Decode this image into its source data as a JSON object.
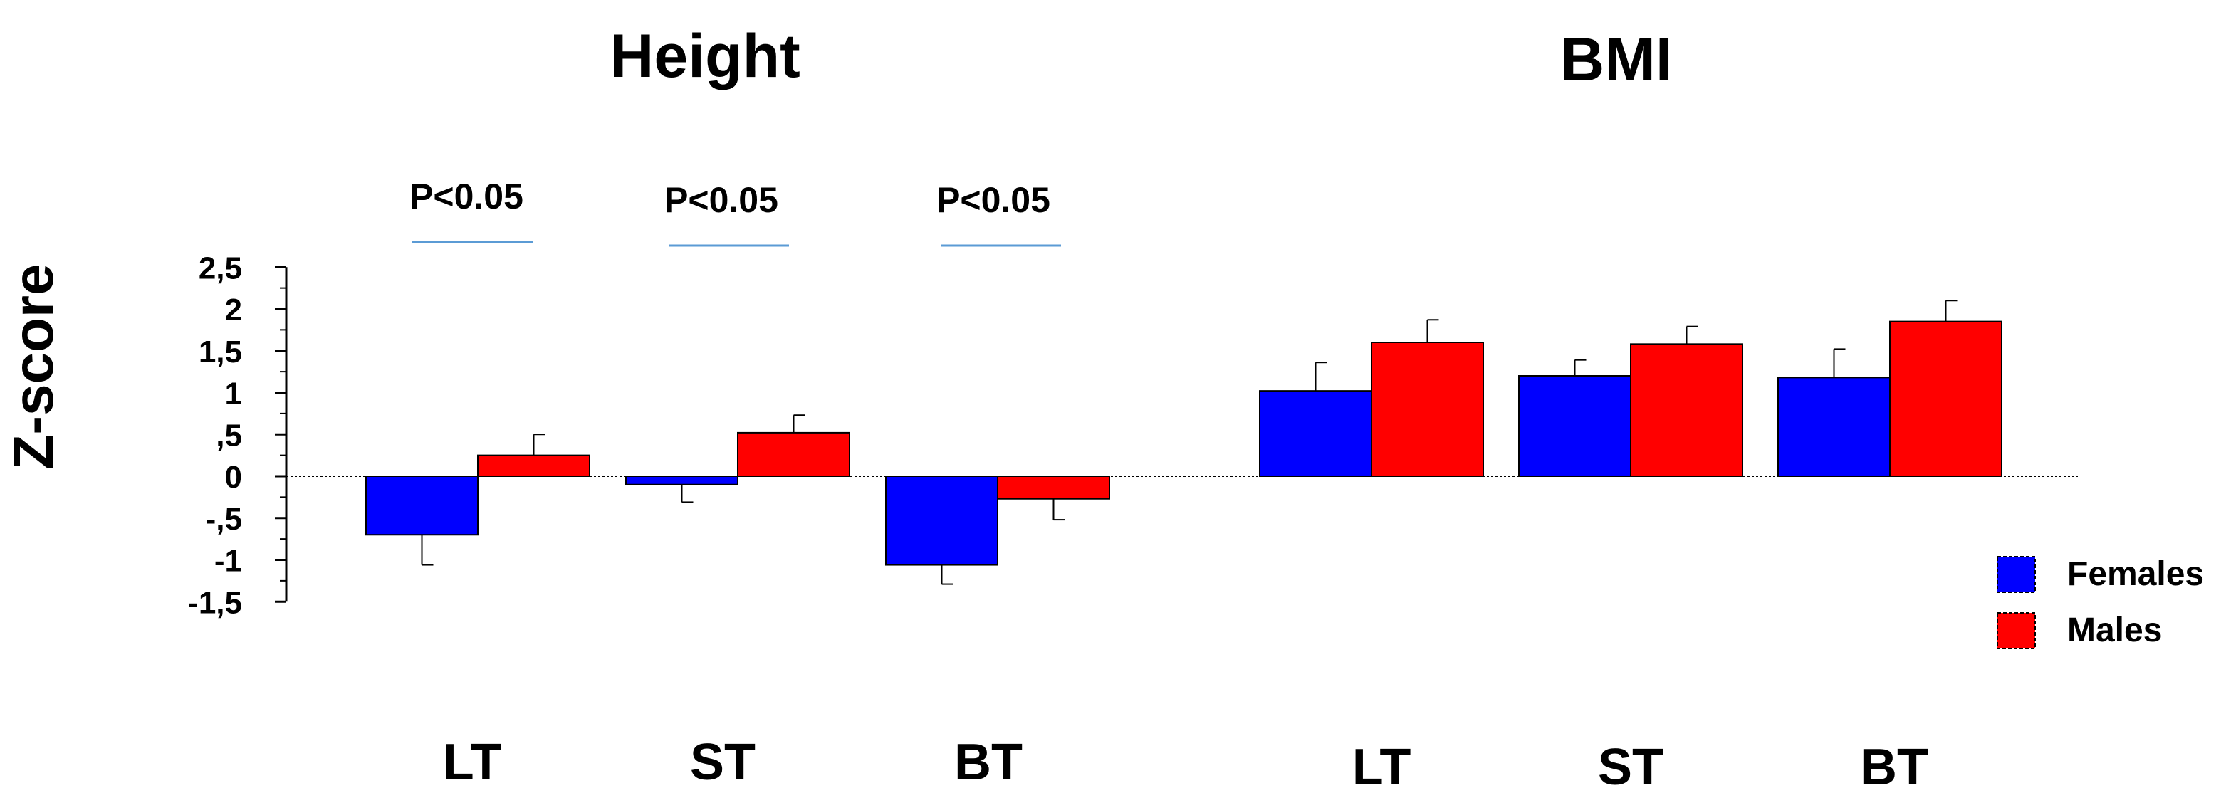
{
  "chart_data": {
    "type": "bar",
    "ylabel": "Z-score",
    "ylim": [
      -1.5,
      2.5
    ],
    "yticks": [
      "2,5",
      "2",
      "1,5",
      "1",
      ",5",
      "0",
      "-,5",
      "-1",
      "-1,5"
    ],
    "ytick_values": [
      2.5,
      2,
      1.5,
      1,
      0.5,
      0,
      -0.5,
      -1,
      -1.5
    ],
    "colors": {
      "Females": "#0000ff",
      "Males": "#ff0000",
      "annotation_line": "#5b9bd5"
    },
    "legend": {
      "position": "right",
      "entries": [
        "Females",
        "Males"
      ]
    },
    "grid": false,
    "panels": [
      {
        "title": "Height",
        "categories": [
          "LT",
          "ST",
          "BT"
        ],
        "series": [
          {
            "name": "Females",
            "values": [
              -0.7,
              -0.1,
              -1.06
            ],
            "errors": [
              0.36,
              0.21,
              0.23
            ]
          },
          {
            "name": "Males",
            "values": [
              0.25,
              0.52,
              -0.27
            ],
            "errors": [
              0.25,
              0.21,
              0.25
            ]
          }
        ],
        "annotations": [
          "P<0.05",
          "P<0.05",
          "P<0.05"
        ]
      },
      {
        "title": "BMI",
        "categories": [
          "LT",
          "ST",
          "BT"
        ],
        "series": [
          {
            "name": "Females",
            "values": [
              1.02,
              1.2,
              1.18
            ],
            "errors": [
              0.34,
              0.19,
              0.34
            ]
          },
          {
            "name": "Males",
            "values": [
              1.6,
              1.58,
              1.85
            ],
            "errors": [
              0.27,
              0.21,
              0.25
            ]
          }
        ],
        "annotations": []
      }
    ]
  }
}
